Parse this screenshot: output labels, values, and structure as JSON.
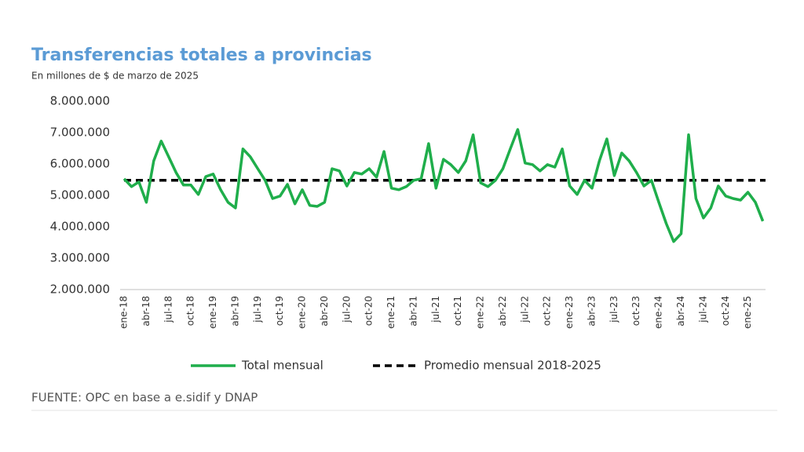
{
  "chart_data": {
    "type": "line",
    "title": "Transferencias totales a provincias",
    "subtitle": "En millones de $ de marzo de 2025",
    "source": "FUENTE: OPC en base a e.sidif y DNAP",
    "categories": [
      "ene-18",
      null,
      null,
      "abr-18",
      null,
      null,
      "jul-18",
      null,
      null,
      "oct-18",
      null,
      null,
      "ene-19",
      null,
      null,
      "abr-19",
      null,
      null,
      "jul-19",
      null,
      null,
      "oct-19",
      null,
      null,
      "ene-20",
      null,
      null,
      "abr-20",
      null,
      null,
      "jul-20",
      null,
      null,
      "oct-20",
      null,
      null,
      "ene-21",
      null,
      null,
      "abr-21",
      null,
      null,
      "jul-21",
      null,
      null,
      "oct-21",
      null,
      null,
      "ene-22",
      null,
      null,
      "abr-22",
      null,
      null,
      "jul-22",
      null,
      null,
      "oct-22",
      null,
      null,
      "ene-23",
      null,
      null,
      "abr-23",
      null,
      null,
      "jul-23",
      null,
      null,
      "oct-23",
      null,
      null,
      "ene-24",
      null,
      null,
      "abr-24",
      null,
      null,
      "jul-24",
      null,
      null,
      "oct-24",
      null,
      null,
      "ene-25",
      null,
      null
    ],
    "series": [
      {
        "name": "Total mensual",
        "color": "#1fae4b",
        "values": [
          5530000,
          5280000,
          5430000,
          4780000,
          6100000,
          6730000,
          6230000,
          5730000,
          5330000,
          5330000,
          5030000,
          5600000,
          5680000,
          5180000,
          4780000,
          4600000,
          6480000,
          6230000,
          5850000,
          5480000,
          4900000,
          4980000,
          5350000,
          4730000,
          5180000,
          4680000,
          4650000,
          4780000,
          5850000,
          5780000,
          5300000,
          5730000,
          5680000,
          5850000,
          5580000,
          6400000,
          5230000,
          5180000,
          5280000,
          5480000,
          5530000,
          6650000,
          5230000,
          6150000,
          5980000,
          5730000,
          6100000,
          6930000,
          5400000,
          5280000,
          5480000,
          5850000,
          6480000,
          7100000,
          6030000,
          5980000,
          5780000,
          5980000,
          5900000,
          6480000,
          5300000,
          5030000,
          5480000,
          5230000,
          6100000,
          6800000,
          5630000,
          6350000,
          6100000,
          5730000,
          5300000,
          5480000,
          4780000,
          4100000,
          3530000,
          3780000,
          6930000,
          4900000,
          4280000,
          4600000,
          5300000,
          4980000,
          4900000,
          4850000,
          5100000,
          4780000,
          4180000
        ]
      }
    ],
    "reference_line": {
      "name": "Promedio mensual 2018-2025",
      "value": 5480000,
      "color": "#000000",
      "dashed": true
    },
    "ylim": [
      2000000,
      8000000
    ],
    "yticks": [
      {
        "value": 2000000,
        "label": "2.000.000"
      },
      {
        "value": 3000000,
        "label": "3.000.000"
      },
      {
        "value": 4000000,
        "label": "4.000.000"
      },
      {
        "value": 5000000,
        "label": "5.000.000"
      },
      {
        "value": 6000000,
        "label": "6.000.000"
      },
      {
        "value": 7000000,
        "label": "7.000.000"
      },
      {
        "value": 8000000,
        "label": "8.000.000"
      }
    ],
    "grid": false,
    "legend": "bottom"
  }
}
